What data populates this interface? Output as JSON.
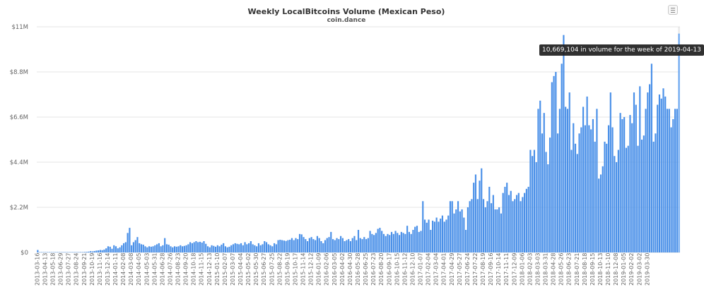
{
  "header": {
    "title": "Weekly LocalBitcoins Volume (Mexican Peso)",
    "subtitle": "coin.dance",
    "menu_icon": "hamburger-menu-icon"
  },
  "tooltip": {
    "text": "10,669,104 in volume for the week of 2019-04-13"
  },
  "colors": {
    "bar": "#4a90e8",
    "bar_highlight": "#6aa8f4",
    "grid": "#e6e6e6",
    "axis_text": "#666666",
    "tooltip_bg": "#1e1e1e"
  },
  "chart_data": {
    "type": "bar",
    "title": "Weekly LocalBitcoins Volume (Mexican Peso)",
    "subtitle": "coin.dance",
    "xlabel": "",
    "ylabel": "",
    "ylim": [
      0,
      11000000
    ],
    "y_ticks": [
      0,
      2200000,
      4400000,
      6600000,
      8800000,
      11000000
    ],
    "y_tick_labels": [
      "$0",
      "$2.2M",
      "$4.4M",
      "$6.6M",
      "$8.8M",
      "$11M"
    ],
    "grid": true,
    "legend": null,
    "x_start": "2013-03-16",
    "x_end": "2019-04-13",
    "x_interval_weeks": 1,
    "x_tick_labels": [
      "2013-03-16",
      "2013-04-13",
      "2013-05-18",
      "2013-06-29",
      "2013-07-27",
      "2013-08-24",
      "2013-09-21",
      "2013-10-19",
      "2013-11-16",
      "2013-12-14",
      "2014-01-11",
      "2014-02-08",
      "2014-03-08",
      "2014-04-05",
      "2014-05-03",
      "2014-05-31",
      "2014-06-28",
      "2014-07-26",
      "2014-08-23",
      "2014-09-20",
      "2014-10-18",
      "2014-11-15",
      "2014-12-13",
      "2015-01-10",
      "2015-02-07",
      "2015-03-07",
      "2015-04-04",
      "2015-05-02",
      "2015-05-30",
      "2015-06-27",
      "2015-07-25",
      "2015-08-22",
      "2015-09-19",
      "2015-10-17",
      "2015-11-14",
      "2015-12-12",
      "2016-01-09",
      "2016-02-06",
      "2016-03-05",
      "2016-04-02",
      "2016-04-30",
      "2016-05-28",
      "2016-06-25",
      "2016-07-23",
      "2016-08-20",
      "2016-09-17",
      "2016-10-15",
      "2016-11-12",
      "2016-12-10",
      "2017-01-07",
      "2017-02-04",
      "2017-03-04",
      "2017-04-01",
      "2017-04-29",
      "2017-05-27",
      "2017-06-24",
      "2017-07-22",
      "2017-08-19",
      "2017-09-16",
      "2017-10-14",
      "2017-11-11",
      "2017-12-09",
      "2018-01-06",
      "2018-02-03",
      "2018-03-03",
      "2018-03-31",
      "2018-04-28",
      "2018-05-26",
      "2018-06-23",
      "2018-07-21",
      "2018-08-18",
      "2018-09-15",
      "2018-10-13",
      "2018-11-10",
      "2018-12-08",
      "2019-01-05",
      "2019-02-02",
      "2019-03-02",
      "2019-03-30"
    ],
    "highlighted_point": {
      "x": "2019-04-13",
      "y": 10669104
    },
    "values": [
      120000,
      15000,
      8000,
      5000,
      10000,
      8000,
      6000,
      12000,
      15000,
      10000,
      8000,
      6000,
      5000,
      4000,
      6000,
      8000,
      10000,
      12000,
      14000,
      10000,
      8000,
      15000,
      20000,
      18000,
      25000,
      30000,
      40000,
      60000,
      50000,
      70000,
      90000,
      100000,
      120000,
      110000,
      140000,
      200000,
      300000,
      280000,
      180000,
      350000,
      300000,
      200000,
      250000,
      350000,
      450000,
      500000,
      950000,
      1200000,
      350000,
      500000,
      600000,
      750000,
      450000,
      400000,
      380000,
      300000,
      250000,
      300000,
      280000,
      300000,
      350000,
      400000,
      450000,
      300000,
      350000,
      700000,
      400000,
      380000,
      300000,
      250000,
      300000,
      280000,
      300000,
      350000,
      300000,
      320000,
      350000,
      400000,
      500000,
      450000,
      500000,
      550000,
      500000,
      520000,
      480000,
      550000,
      420000,
      300000,
      250000,
      350000,
      320000,
      280000,
      350000,
      300000,
      380000,
      450000,
      300000,
      250000,
      280000,
      350000,
      400000,
      450000,
      420000,
      400000,
      450000,
      350000,
      500000,
      400000,
      450000,
      550000,
      400000,
      350000,
      300000,
      450000,
      350000,
      400000,
      550000,
      500000,
      400000,
      350000,
      300000,
      450000,
      400000,
      600000,
      620000,
      600000,
      580000,
      560000,
      600000,
      620000,
      700000,
      600000,
      700000,
      650000,
      900000,
      880000,
      750000,
      650000,
      550000,
      700000,
      750000,
      650000,
      600000,
      800000,
      700000,
      550000,
      450000,
      600000,
      700000,
      750000,
      1000000,
      650000,
      600000,
      700000,
      650000,
      800000,
      700000,
      550000,
      600000,
      650000,
      550000,
      700000,
      800000,
      600000,
      1100000,
      700000,
      650000,
      750000,
      650000,
      700000,
      1050000,
      900000,
      850000,
      950000,
      1150000,
      1200000,
      1050000,
      900000,
      800000,
      900000,
      850000,
      1000000,
      900000,
      1050000,
      950000,
      850000,
      1000000,
      950000,
      900000,
      1300000,
      1000000,
      900000,
      1100000,
      1250000,
      1300000,
      1000000,
      1050000,
      2500000,
      1600000,
      1450000,
      1600000,
      1100000,
      1550000,
      1500000,
      1700000,
      1500000,
      1650000,
      1800000,
      1500000,
      1600000,
      1800000,
      2500000,
      2500000,
      1900000,
      2100000,
      2500000,
      2000000,
      2100000,
      1700000,
      1100000,
      2200000,
      2500000,
      2600000,
      3400000,
      3800000,
      2600000,
      3500000,
      4100000,
      2600000,
      2200000,
      2500000,
      3200000,
      2400000,
      2800000,
      2100000,
      2100000,
      2200000,
      1900000,
      2900000,
      3200000,
      3400000,
      2800000,
      3000000,
      2500000,
      2600000,
      2800000,
      2900000,
      2500000,
      2700000,
      2900000,
      3100000,
      3200000,
      5000000,
      4700000,
      5000000,
      4400000,
      7000000,
      7400000,
      5800000,
      6800000,
      4900000,
      4300000,
      5600000,
      8300000,
      8600000,
      8800000,
      5800000,
      7000000,
      9200000,
      10600000,
      7100000,
      7000000,
      7800000,
      5000000,
      6300000,
      5300000,
      4800000,
      5800000,
      6100000,
      7100000,
      6200000,
      7600000,
      6200000,
      6000000,
      6500000,
      5400000,
      7000000,
      3600000,
      3800000,
      4200000,
      5400000,
      5300000,
      6200000,
      7800000,
      6100000,
      4700000,
      4400000,
      5000000,
      6800000,
      6500000,
      6600000,
      5100000,
      5200000,
      6700000,
      6300000,
      7800000,
      7200000,
      5200000,
      8100000,
      5500000,
      5700000,
      7000000,
      7800000,
      8200000,
      9200000,
      5400000,
      5800000,
      7200000,
      7700000,
      7500000,
      8000000,
      7600000,
      7000000,
      7000000,
      6100000,
      6500000,
      7000000,
      7000000,
      10669104
    ]
  }
}
